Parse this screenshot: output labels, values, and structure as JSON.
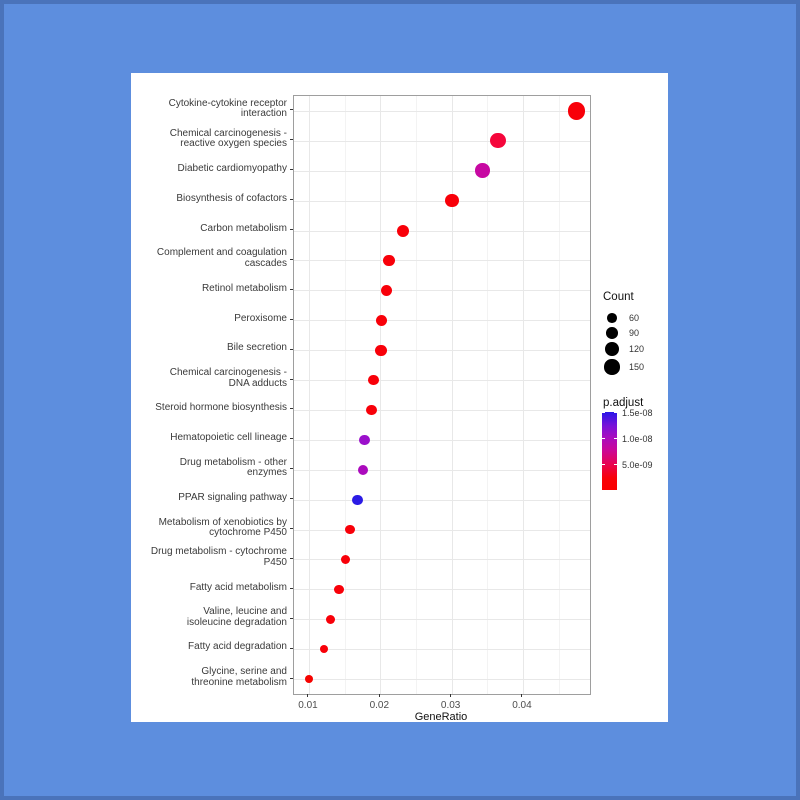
{
  "page": {
    "background_fill": "#5D8EDE",
    "frame_color": "#4A73BA",
    "card_color": "#FFFFFF"
  },
  "chart_data": {
    "type": "scatter",
    "subtype": "enrichment-dotplot",
    "title": "",
    "xlabel": "GeneRatio",
    "ylabel": "",
    "grid": "on",
    "legend_position": "right",
    "xlim": [
      0.0079,
      0.0494
    ],
    "x_ticks": [
      0.01,
      0.02,
      0.03,
      0.04
    ],
    "x_minor_ticks": [
      0.015,
      0.025,
      0.035,
      0.045
    ],
    "points": [
      {
        "label": "Cytokine-cytokine receptor interaction",
        "label_lines": [
          "Cytokine-cytokine receptor",
          "interaction"
        ],
        "gene_ratio": 0.0475,
        "count": 190,
        "p_adjust": 1e-13,
        "color": "#F80009"
      },
      {
        "label": "Chemical carcinogenesis - reactive oxygen species",
        "label_lines": [
          "Chemical carcinogenesis -",
          "reactive oxygen species"
        ],
        "gene_ratio": 0.0365,
        "count": 146,
        "p_adjust": 2e-09,
        "color": "#F5063B"
      },
      {
        "label": "Diabetic cardiomyopathy",
        "label_lines": [
          "Diabetic cardiomyopathy"
        ],
        "gene_ratio": 0.0343,
        "count": 137,
        "p_adjust": 6e-09,
        "color": "#C708A2"
      },
      {
        "label": "Biosynthesis of cofactors",
        "label_lines": [
          "Biosynthesis of cofactors"
        ],
        "gene_ratio": 0.0301,
        "count": 120,
        "p_adjust": 5e-10,
        "color": "#F80009"
      },
      {
        "label": "Carbon metabolism",
        "label_lines": [
          "Carbon metabolism"
        ],
        "gene_ratio": 0.0232,
        "count": 93,
        "p_adjust": 3e-10,
        "color": "#F80009"
      },
      {
        "label": "Complement and coagulation cascades",
        "label_lines": [
          "Complement and coagulation",
          "cascades"
        ],
        "gene_ratio": 0.0212,
        "count": 85,
        "p_adjust": 8e-10,
        "color": "#F80009"
      },
      {
        "label": "Retinol metabolism",
        "label_lines": [
          "Retinol metabolism"
        ],
        "gene_ratio": 0.0209,
        "count": 84,
        "p_adjust": 1e-09,
        "color": "#F80009"
      },
      {
        "label": "Peroxisome",
        "label_lines": [
          "Peroxisome"
        ],
        "gene_ratio": 0.0202,
        "count": 81,
        "p_adjust": 5e-10,
        "color": "#F80009"
      },
      {
        "label": "Bile secretion",
        "label_lines": [
          "Bile secretion"
        ],
        "gene_ratio": 0.0201,
        "count": 80,
        "p_adjust": 1e-09,
        "color": "#F80009"
      },
      {
        "label": "Chemical carcinogenesis - DNA adducts",
        "label_lines": [
          "Chemical carcinogenesis -",
          "DNA adducts"
        ],
        "gene_ratio": 0.0191,
        "count": 76,
        "p_adjust": 8e-10,
        "color": "#F80009"
      },
      {
        "label": "Steroid hormone biosynthesis",
        "label_lines": [
          "Steroid hormone biosynthesis"
        ],
        "gene_ratio": 0.0188,
        "count": 75,
        "p_adjust": 1e-09,
        "color": "#F80009"
      },
      {
        "label": "Hematopoietic cell lineage",
        "label_lines": [
          "Hematopoietic cell lineage"
        ],
        "gene_ratio": 0.0178,
        "count": 71,
        "p_adjust": 8.5e-09,
        "color": "#9B10CB"
      },
      {
        "label": "Drug metabolism - other enzymes",
        "label_lines": [
          "Drug metabolism - other",
          "enzymes"
        ],
        "gene_ratio": 0.0176,
        "count": 70,
        "p_adjust": 7.5e-09,
        "color": "#AB0ABD"
      },
      {
        "label": "PPAR signaling pathway",
        "label_lines": [
          "PPAR signaling pathway"
        ],
        "gene_ratio": 0.0168,
        "count": 67,
        "p_adjust": 1.4e-08,
        "color": "#2B1BE5"
      },
      {
        "label": "Metabolism of xenobiotics by cytochrome P450",
        "label_lines": [
          "Metabolism of xenobiotics by",
          "cytochrome P450"
        ],
        "gene_ratio": 0.0157,
        "count": 63,
        "p_adjust": 1e-09,
        "color": "#F80009"
      },
      {
        "label": "Drug metabolism - cytochrome P450",
        "label_lines": [
          "Drug metabolism - cytochrome",
          "P450"
        ],
        "gene_ratio": 0.0151,
        "count": 60,
        "p_adjust": 9e-10,
        "color": "#F80009"
      },
      {
        "label": "Fatty acid metabolism",
        "label_lines": [
          "Fatty acid metabolism"
        ],
        "gene_ratio": 0.0142,
        "count": 57,
        "p_adjust": 6e-10,
        "color": "#F80009"
      },
      {
        "label": "Valine, leucine and isoleucine degradation",
        "label_lines": [
          "Valine, leucine and",
          "isoleucine degradation"
        ],
        "gene_ratio": 0.013,
        "count": 52,
        "p_adjust": 9e-10,
        "color": "#F80009"
      },
      {
        "label": "Fatty acid degradation",
        "label_lines": [
          "Fatty acid degradation"
        ],
        "gene_ratio": 0.0121,
        "count": 48,
        "p_adjust": 1e-09,
        "color": "#F80009"
      },
      {
        "label": "Glycine, serine and threonine metabolism",
        "label_lines": [
          "Glycine, serine and",
          "threonine metabolism"
        ],
        "gene_ratio": 0.01,
        "count": 40,
        "p_adjust": 1.2e-09,
        "color": "#F50300"
      }
    ],
    "legend_count": {
      "title": "Count",
      "values": [
        60,
        90,
        120,
        150
      ],
      "circle_color": "#000000"
    },
    "legend_padjust": {
      "title": "p.adjust",
      "tick_labels": [
        "1.5e-08",
        "1.0e-08",
        "5.0e-09"
      ],
      "tick_values": [
        1.5e-08,
        1e-08,
        5e-09
      ],
      "scale_max": 1.5e-08,
      "scale_min": 0,
      "gradient_stops": [
        "#2A16E8 0%",
        "#7A13D8 18%",
        "#A90DBE 33%",
        "#C9089B 48%",
        "#E60455 66%",
        "#F80207 85%",
        "#FA0000 100%"
      ]
    }
  }
}
